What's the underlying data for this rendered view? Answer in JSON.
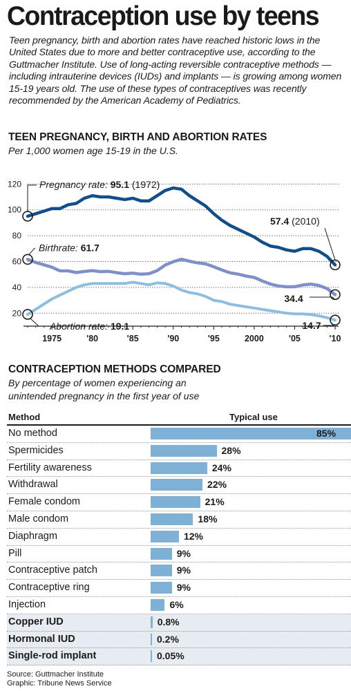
{
  "title": "Contraception use by teens",
  "intro": "Teen pregnancy, birth and abortion rates have reached historic lows in the United States due to more and better contraceptive use, according to the Guttmacher Institute. Use of long-acting reversible contraceptive methods — including intrauterine devices (IUDs) and implants — is growing among women 15-19 years old. The use of these types of contraceptives was recently recommended by the American Academy of Pediatrics.",
  "section1": {
    "title": "TEEN PREGNANCY, BIRTH AND ABORTION RATES",
    "subtitle": "Per 1,000 women age 15-19 in the U.S."
  },
  "section2": {
    "title": "CONTRACEPTION METHODS COMPARED",
    "subtitle_line1": "By percentage of women experiencing an",
    "subtitle_line2": "unintended pregnancy in the first year of use",
    "col_method": "Method",
    "col_use": "Typical use"
  },
  "chart_data": [
    {
      "type": "line",
      "xlim": [
        1972,
        2010
      ],
      "ylim": [
        10,
        125
      ],
      "grid": true,
      "ytick_values": [
        20,
        40,
        60,
        80,
        100,
        120
      ],
      "ytick_labels": [
        "20",
        "40",
        "60",
        "80",
        "100",
        "120"
      ],
      "xtick_values": [
        1975,
        1980,
        1985,
        1990,
        1995,
        2000,
        2005,
        2010
      ],
      "xtick_labels": [
        "1975",
        "'80",
        "'85",
        "'90",
        "'95",
        "2000",
        "'05",
        "'10"
      ],
      "series": [
        {
          "name": "Pregnancy rate",
          "color": "#114f8c",
          "x": [
            1972,
            1973,
            1974,
            1975,
            1976,
            1977,
            1978,
            1979,
            1980,
            1981,
            1982,
            1983,
            1984,
            1985,
            1986,
            1987,
            1988,
            1989,
            1990,
            1991,
            1992,
            1993,
            1994,
            1995,
            1996,
            1997,
            1998,
            1999,
            2000,
            2001,
            2002,
            2003,
            2004,
            2005,
            2006,
            2007,
            2008,
            2009,
            2010
          ],
          "y": [
            95.1,
            97,
            99,
            101,
            101,
            104,
            105,
            109,
            111,
            110,
            110,
            109,
            108,
            109,
            107,
            107,
            111,
            115,
            117,
            116,
            111,
            107,
            103,
            97,
            92,
            88,
            85,
            82,
            79,
            75,
            72,
            71,
            69,
            68,
            70,
            70,
            68,
            64,
            57.4
          ],
          "annotations": [
            {
              "label": "Pregnancy rate:",
              "value": "95.1",
              "note": "(1972)"
            },
            {
              "value": "57.4",
              "note": "(2010)"
            }
          ]
        },
        {
          "name": "Birthrate",
          "color": "#7d91c8",
          "x": [
            1972,
            1973,
            1974,
            1975,
            1976,
            1977,
            1978,
            1979,
            1980,
            1981,
            1982,
            1983,
            1984,
            1985,
            1986,
            1987,
            1988,
            1989,
            1990,
            1991,
            1992,
            1993,
            1994,
            1995,
            1996,
            1997,
            1998,
            1999,
            2000,
            2001,
            2002,
            2003,
            2004,
            2005,
            2006,
            2007,
            2008,
            2009,
            2010
          ],
          "y": [
            61.7,
            59.3,
            57.5,
            55.6,
            52.8,
            52.8,
            51.5,
            52.3,
            53,
            52.2,
            52.4,
            51.4,
            50.6,
            51,
            50.2,
            50.6,
            53,
            57.3,
            59.9,
            61.8,
            60.3,
            59,
            58.2,
            56,
            53.5,
            51.3,
            50.3,
            48.8,
            47.7,
            45,
            42.6,
            41.1,
            40.5,
            40.5,
            41.9,
            42.5,
            41.5,
            39.1,
            34.4
          ],
          "annotations": [
            {
              "label": "Birthrate:",
              "value": "61.7"
            },
            {
              "value": "34.4"
            }
          ]
        },
        {
          "name": "Abortion rate",
          "color": "#8ebedf",
          "x": [
            1972,
            1973,
            1974,
            1975,
            1976,
            1977,
            1978,
            1979,
            1980,
            1981,
            1982,
            1983,
            1984,
            1985,
            1986,
            1987,
            1988,
            1989,
            1990,
            1991,
            1992,
            1993,
            1994,
            1995,
            1996,
            1997,
            1998,
            1999,
            2000,
            2001,
            2002,
            2003,
            2004,
            2005,
            2006,
            2007,
            2008,
            2009,
            2010
          ],
          "y": [
            19.1,
            23,
            27,
            31,
            34,
            37,
            40,
            42,
            43,
            43,
            43,
            43,
            43,
            44,
            43,
            42,
            43.5,
            43,
            41,
            38,
            36,
            35,
            33,
            30,
            29,
            27,
            26,
            25,
            24,
            23,
            22,
            21,
            20,
            19.5,
            19.5,
            19,
            18,
            16.5,
            14.7
          ],
          "annotations": [
            {
              "label": "Abortion rate:",
              "value": "19.1"
            },
            {
              "value": "14.7"
            }
          ]
        }
      ]
    },
    {
      "type": "bar",
      "orientation": "horizontal",
      "xlim": [
        0,
        85
      ],
      "color": "#7fb1d6",
      "categories": [
        "No method",
        "Spermicides",
        "Fertility awareness",
        "Withdrawal",
        "Female condom",
        "Male condom",
        "Diaphragm",
        "Pill",
        "Contraceptive patch",
        "Contraceptive ring",
        "Injection",
        "Copper IUD",
        "Hormonal IUD",
        "Single-rod implant"
      ],
      "values": [
        85,
        28,
        24,
        22,
        21,
        18,
        12,
        9,
        9,
        9,
        6,
        0.8,
        0.2,
        0.05
      ],
      "value_labels": [
        "85%",
        "28%",
        "24%",
        "22%",
        "21%",
        "18%",
        "12%",
        "9%",
        "9%",
        "9%",
        "6%",
        "0.8%",
        "0.2%",
        "0.05%"
      ],
      "highlighted": [
        "Copper IUD",
        "Hormonal IUD",
        "Single-rod implant"
      ]
    }
  ],
  "source": {
    "line1": "Source: Guttmacher Institute",
    "line2": "Graphic: Tribune News Service"
  }
}
